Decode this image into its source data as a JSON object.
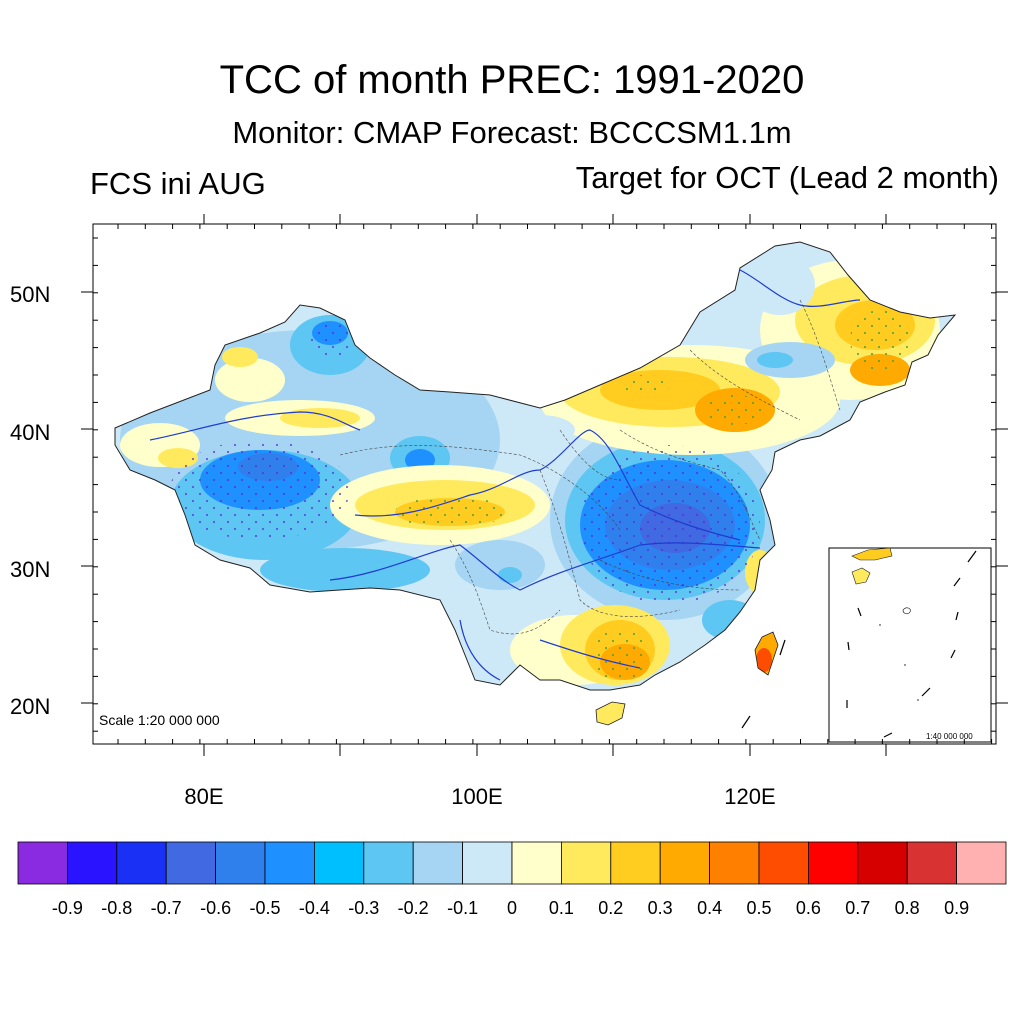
{
  "title": "TCC of month PREC: 1991-2020",
  "subtitle": "Monitor: CMAP   Forecast: BCCCSM1.1m",
  "left_label": "FCS ini AUG",
  "right_label": "Target for OCT (Lead 2 month)",
  "scale_main": "Scale 1:20 000 000",
  "scale_inset": "1:40 000 000",
  "axes": {
    "lat_labels": [
      "50N",
      "40N",
      "30N",
      "20N"
    ],
    "lon_labels": [
      "80E",
      "100E",
      "120E"
    ]
  },
  "colorbar": {
    "colors": [
      "#8a2be2",
      "#2a14ff",
      "#1a31f5",
      "#4169e1",
      "#2f80ed",
      "#1e90ff",
      "#00bfff",
      "#5ec6f2",
      "#a5d5f2",
      "#cde8f7",
      "#ffffcc",
      "#ffea5e",
      "#ffcc1f",
      "#ffaa00",
      "#ff8000",
      "#ff4d00",
      "#ff0000",
      "#d70000",
      "#d83232",
      "#ffb0b0"
    ],
    "labels": [
      "-0.9",
      "-0.8",
      "-0.7",
      "-0.6",
      "-0.5",
      "-0.4",
      "-0.3",
      "-0.2",
      "-0.1",
      "0",
      "0.1",
      "0.2",
      "0.3",
      "0.4",
      "0.5",
      "0.6",
      "0.7",
      "0.8",
      "0.9"
    ]
  }
}
